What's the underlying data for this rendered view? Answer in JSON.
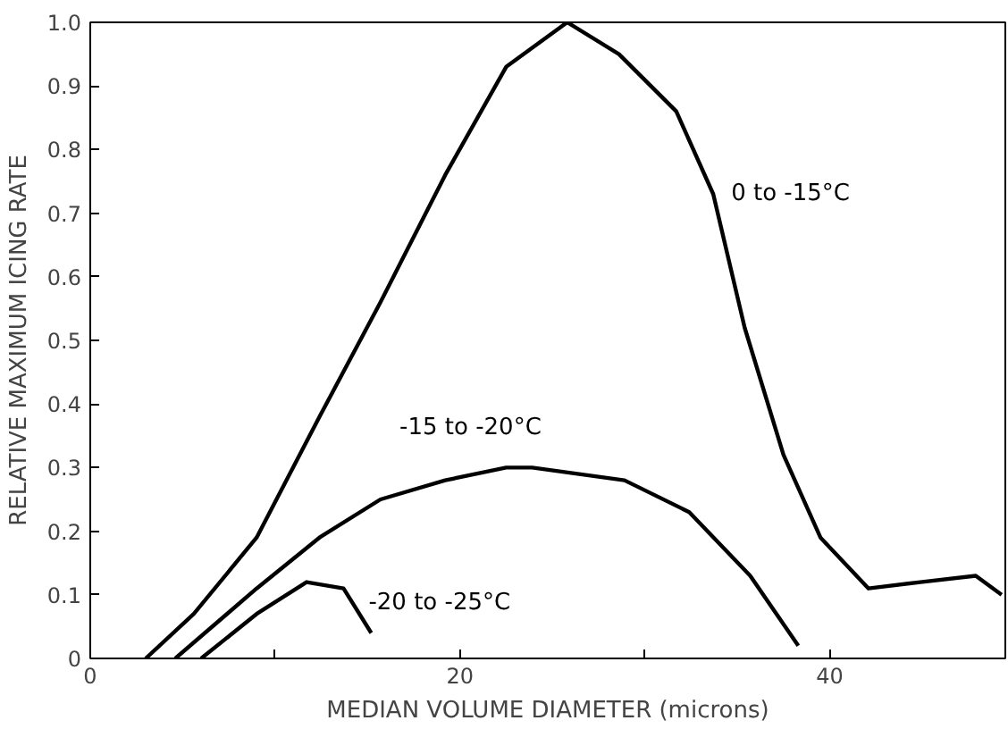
{
  "chart_data": {
    "type": "line",
    "xlabel": "MEDIAN VOLUME DIAMETER (microns)",
    "ylabel": "RELATIVE MAXIMUM ICING RATE",
    "xlim": [
      0,
      49.5
    ],
    "ylim": [
      0,
      1.0
    ],
    "xticks": [
      0,
      {
        "value": 10,
        "label": null
      },
      20,
      {
        "value": 30,
        "label": null
      },
      40
    ],
    "yticks": [
      0,
      0.1,
      0.2,
      0.3,
      0.4,
      0.5,
      0.6,
      0.7,
      0.8,
      0.9,
      {
        "value": 1.0,
        "label": "1.0"
      }
    ],
    "grid": false,
    "legend": false,
    "marker": "none",
    "line_style": "solid",
    "series": [
      {
        "name": "0 to -15°C",
        "color": "#000000",
        "x": [
          3.0,
          5.6,
          9.0,
          12.4,
          15.7,
          19.2,
          22.5,
          25.8,
          28.6,
          31.7,
          33.7,
          35.4,
          37.5,
          39.5,
          42.1,
          44.9,
          47.9,
          49.3
        ],
        "values": [
          0,
          0.07,
          0.19,
          0.38,
          0.56,
          0.76,
          0.93,
          1.0,
          0.95,
          0.86,
          0.73,
          0.52,
          0.32,
          0.19,
          0.11,
          0.12,
          0.13,
          0.1
        ]
      },
      {
        "name": "-15 to -20°C",
        "color": "#000000",
        "x": [
          4.6,
          9.0,
          12.4,
          15.7,
          19.2,
          22.5,
          23.9,
          28.9,
          32.4,
          35.7,
          38.3
        ],
        "values": [
          0,
          0.11,
          0.19,
          0.25,
          0.28,
          0.3,
          0.3,
          0.28,
          0.23,
          0.13,
          0.02
        ]
      },
      {
        "name": "-20 to -25°C",
        "color": "#000000",
        "x": [
          6.0,
          9.0,
          11.7,
          13.7,
          15.2
        ],
        "values": [
          0,
          0.07,
          0.12,
          0.11,
          0.04
        ]
      }
    ]
  }
}
